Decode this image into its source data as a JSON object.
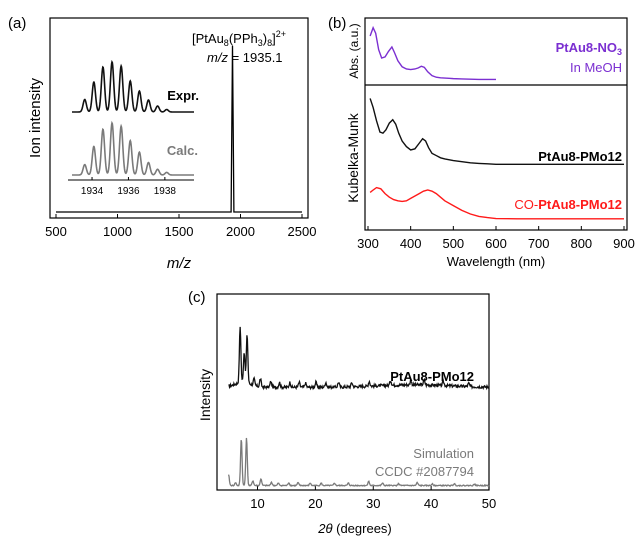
{
  "chart_data": [
    {
      "panel_label": "(a)",
      "type": "line",
      "xlabel": "m/z",
      "ylabel": "Ion intensity",
      "xlim": [
        500,
        2500
      ],
      "x_ticks": [
        500,
        1000,
        1500,
        2000,
        2500
      ],
      "ylim": [
        0,
        1
      ],
      "annotation": {
        "formula_lead": "[PtAu",
        "formula_sub1": "8",
        "formula_mid": "(PPh",
        "formula_sub2": "3",
        "formula_close": ")",
        "formula_sub3": "8",
        "formula_tail": "]",
        "formula_sup": "2+",
        "mz_label": "m/z",
        "mz_value": " = 1935.1"
      },
      "peak": {
        "x": 1935.1,
        "y": 0.96
      },
      "inset": {
        "x_ticks": [
          1934,
          1936,
          1938
        ],
        "xlim": [
          1932.9,
          1939.6
        ],
        "series": [
          {
            "name": "Expr.",
            "color": "#111111",
            "peaks": [
              [
                1933.6,
                0.25
              ],
              [
                1934.1,
                0.6
              ],
              [
                1934.6,
                0.9
              ],
              [
                1935.1,
                1.0
              ],
              [
                1935.6,
                0.92
              ],
              [
                1936.1,
                0.62
              ],
              [
                1936.6,
                0.42
              ],
              [
                1937.1,
                0.24
              ],
              [
                1937.6,
                0.12
              ],
              [
                1938.1,
                0.05
              ]
            ]
          },
          {
            "name": "Calc.",
            "color": "#7a7a7a",
            "peaks": [
              [
                1933.6,
                0.2
              ],
              [
                1934.1,
                0.55
              ],
              [
                1934.6,
                0.88
              ],
              [
                1935.1,
                1.0
              ],
              [
                1935.6,
                0.94
              ],
              [
                1936.1,
                0.66
              ],
              [
                1936.6,
                0.44
              ],
              [
                1937.1,
                0.24
              ],
              [
                1937.6,
                0.11
              ],
              [
                1938.1,
                0.05
              ]
            ]
          }
        ]
      }
    },
    {
      "panel_label": "(b)",
      "type": "line",
      "xlabel": "Wavelength (nm)",
      "xlim": [
        300,
        900
      ],
      "x_ticks": [
        300,
        400,
        500,
        600,
        700,
        800,
        900
      ],
      "top": {
        "ylabel": "Abs. (a.u.)",
        "series": [
          {
            "name": "PtAu8-NO",
            "name_sub": "3",
            "sub_label": "In MeOH",
            "color": "#7b2fd1",
            "x": [
              305,
              312,
              318,
              325,
              332,
              340,
              348,
              356,
              362,
              370,
              380,
              390,
              400,
              410,
              418,
              425,
              432,
              440,
              450,
              460,
              470,
              480,
              490,
              500,
              520,
              540,
              560,
              580,
              600
            ],
            "y": [
              0.8,
              0.95,
              0.85,
              0.55,
              0.4,
              0.42,
              0.52,
              0.6,
              0.5,
              0.35,
              0.24,
              0.2,
              0.19,
              0.2,
              0.22,
              0.25,
              0.23,
              0.15,
              0.08,
              0.05,
              0.04,
              0.035,
              0.03,
              0.025,
              0.02,
              0.015,
              0.01,
              0.01,
              0.01
            ]
          }
        ]
      },
      "bottom": {
        "ylabel": "Kubelka-Munk",
        "series": [
          {
            "name": "PtAu8-PMo12",
            "color": "#111111",
            "x": [
              305,
              312,
              320,
              328,
              335,
              342,
              350,
              358,
              365,
              372,
              380,
              390,
              400,
              410,
              420,
              428,
              435,
              442,
              450,
              460,
              470,
              480,
              500,
              520,
              540,
              560,
              580,
              590,
              600,
              650,
              700,
              750,
              800,
              850,
              900
            ],
            "y": [
              0.88,
              0.8,
              0.68,
              0.58,
              0.57,
              0.6,
              0.66,
              0.69,
              0.65,
              0.57,
              0.5,
              0.45,
              0.42,
              0.43,
              0.48,
              0.52,
              0.5,
              0.44,
              0.39,
              0.37,
              0.35,
              0.34,
              0.325,
              0.315,
              0.305,
              0.3,
              0.296,
              0.294,
              0.292,
              0.292,
              0.292,
              0.292,
              0.292,
              0.292,
              0.292
            ]
          },
          {
            "name_prefix": "CO-",
            "name": "PtAu8-PMo12",
            "color": "#ff1a1a",
            "x": [
              305,
              312,
              320,
              330,
              340,
              350,
              360,
              370,
              380,
              390,
              400,
              410,
              420,
              430,
              440,
              450,
              460,
              470,
              480,
              500,
              520,
              540,
              560,
              580,
              600,
              650,
              700,
              750,
              800,
              850,
              900
            ],
            "y": [
              0.23,
              0.25,
              0.27,
              0.26,
              0.22,
              0.19,
              0.17,
              0.16,
              0.155,
              0.16,
              0.18,
              0.2,
              0.22,
              0.24,
              0.25,
              0.24,
              0.22,
              0.19,
              0.16,
              0.12,
              0.08,
              0.05,
              0.03,
              0.02,
              0.012,
              0.01,
              0.01,
              0.01,
              0.01,
              0.01,
              0.01
            ]
          }
        ]
      }
    },
    {
      "panel_label": "(c)",
      "type": "line",
      "xlabel_italic": "2θ",
      "xlabel_rest": " (degrees)",
      "ylabel": "Intensity",
      "xlim": [
        3,
        50
      ],
      "x_ticks": [
        10,
        20,
        30,
        40,
        50
      ],
      "series": [
        {
          "name": "PtAu8-PMo12",
          "color": "#111111",
          "peaks": [
            [
              7.0,
              0.7
            ],
            [
              7.7,
              0.38
            ],
            [
              8.2,
              0.6
            ],
            [
              9.4,
              0.08
            ],
            [
              10.5,
              0.1
            ],
            [
              12.3,
              0.07
            ],
            [
              13.8,
              0.06
            ],
            [
              15.6,
              0.06
            ],
            [
              17.2,
              0.06
            ],
            [
              18.3,
              0.05
            ],
            [
              20.1,
              0.06
            ],
            [
              21.8,
              0.06
            ],
            [
              24.0,
              0.06
            ],
            [
              26.3,
              0.05
            ],
            [
              29.3,
              0.06
            ],
            [
              33.0,
              0.06
            ],
            [
              36.5,
              0.05
            ],
            [
              38.8,
              0.06
            ],
            [
              42.1,
              0.05
            ],
            [
              46.5,
              0.04
            ]
          ]
        },
        {
          "name": "Simulation",
          "sub_label": "CCDC #2087794",
          "color": "#7a7a7a",
          "peaks": [
            [
              5.0,
              0.22
            ],
            [
              6.2,
              0.06
            ],
            [
              7.2,
              0.98
            ],
            [
              8.1,
              1.0
            ],
            [
              9.2,
              0.1
            ],
            [
              10.6,
              0.14
            ],
            [
              12.4,
              0.07
            ],
            [
              13.6,
              0.05
            ],
            [
              15.4,
              0.06
            ],
            [
              17.0,
              0.06
            ],
            [
              19.1,
              0.05
            ],
            [
              21.0,
              0.05
            ],
            [
              23.3,
              0.05
            ],
            [
              25.7,
              0.05
            ],
            [
              29.2,
              0.09
            ],
            [
              31.6,
              0.05
            ],
            [
              34.4,
              0.04
            ],
            [
              37.6,
              0.06
            ],
            [
              40.2,
              0.04
            ],
            [
              44.0,
              0.04
            ],
            [
              47.5,
              0.03
            ]
          ]
        }
      ]
    }
  ]
}
